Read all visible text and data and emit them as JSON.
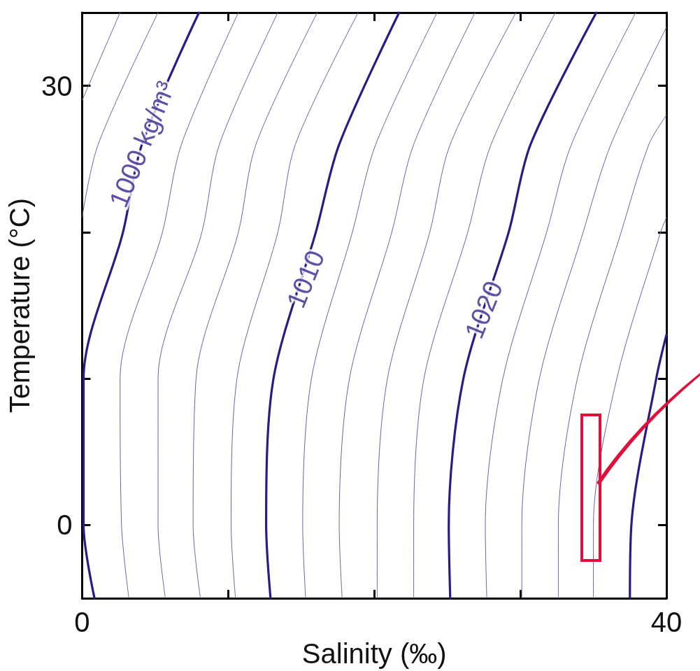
{
  "chart_data": {
    "type": "line",
    "xlabel": "Salinity (‰)",
    "ylabel": "Temperature (°C)",
    "xlim": [
      0,
      40
    ],
    "xticks": [
      0,
      {
        "value": 10,
        "label": null
      },
      {
        "value": 20,
        "label": null
      },
      {
        "value": 30,
        "label": null
      },
      40
    ],
    "ylim": [
      -5,
      35
    ],
    "yticks": [
      0,
      {
        "value": 10,
        "label": null
      },
      {
        "value": 20,
        "label": null
      },
      30
    ],
    "grid": false,
    "legend": false,
    "marker": "none",
    "line_style": "solid",
    "annotations": [
      {
        "text": "1000 kg/m³",
        "x": 4.1,
        "y": 26
      },
      {
        "text": "1010",
        "x": 15.3,
        "y": 16.8
      },
      {
        "text": "1020",
        "x": 27.5,
        "y": 14.7
      }
    ],
    "series": [
      {
        "color": "#6a62b0",
        "x": [
          0,
          2.6
        ],
        "values": [
          29,
          35
        ]
      },
      {
        "color": "#6a62b0",
        "x": [
          0,
          1.1,
          5.2
        ],
        "values": [
          21,
          26,
          35
        ]
      },
      {
        "color": "#2e1a87",
        "x": [
          0.85,
          0.1,
          0.1,
          2.8,
          4.1,
          8.0
        ],
        "values": [
          -5,
          0,
          10,
          20,
          26,
          35
        ]
      },
      {
        "color": "#6a62b0",
        "x": [
          3.2,
          2.7,
          2.6,
          5.5,
          6.8,
          10.7
        ],
        "values": [
          -5,
          0,
          10,
          20,
          26,
          35
        ]
      },
      {
        "color": "#6a62b0",
        "x": [
          5.7,
          5.2,
          5.2,
          8.2,
          9.4,
          13.4
        ],
        "values": [
          -5,
          0,
          10,
          20,
          26,
          35
        ]
      },
      {
        "color": "#6a62b0",
        "x": [
          8.1,
          7.6,
          7.8,
          10.7,
          11.9,
          16.1
        ],
        "values": [
          -5,
          0,
          10,
          20,
          26,
          35
        ]
      },
      {
        "color": "#6a62b0",
        "x": [
          10.5,
          10.2,
          10.6,
          13.4,
          14.6,
          18.9
        ],
        "values": [
          -5,
          0,
          10,
          20,
          26,
          35
        ]
      },
      {
        "color": "#2e1a87",
        "x": [
          12.9,
          12.6,
          13.1,
          16.0,
          17.6,
          21.7
        ],
        "values": [
          -5,
          0,
          10,
          20,
          26,
          35
        ]
      },
      {
        "color": "#6a62b0",
        "x": [
          15.3,
          15.1,
          15.7,
          18.5,
          20.1,
          24.3
        ],
        "values": [
          -5,
          0,
          10,
          20,
          26,
          35
        ]
      },
      {
        "color": "#6a62b0",
        "x": [
          17.8,
          17.6,
          18.3,
          21.2,
          22.7,
          26.9
        ],
        "values": [
          -5,
          0,
          10,
          20,
          26,
          35
        ]
      },
      {
        "color": "#6a62b0",
        "x": [
          20.2,
          20.2,
          20.9,
          23.8,
          25.2,
          29.7
        ],
        "values": [
          -5,
          0,
          10,
          20,
          26,
          35
        ]
      },
      {
        "color": "#6a62b0",
        "x": [
          22.7,
          22.7,
          23.4,
          26.4,
          28.0,
          32.4
        ],
        "values": [
          -5,
          0,
          10,
          20,
          26,
          35
        ]
      },
      {
        "color": "#2e1a87",
        "x": [
          25.2,
          25.1,
          26.1,
          29.2,
          30.7,
          35.2
        ],
        "values": [
          -5,
          0,
          10,
          20,
          26,
          35
        ]
      },
      {
        "color": "#6a62b0",
        "x": [
          27.7,
          27.6,
          28.8,
          31.8,
          33.5,
          37.9
        ],
        "values": [
          -5,
          0,
          10,
          20,
          26,
          35
        ]
      },
      {
        "color": "#6a62b0",
        "x": [
          30.1,
          30.1,
          31.3,
          34.3,
          36.2,
          40
        ],
        "values": [
          -5,
          0,
          10,
          20,
          26,
          34
        ]
      },
      {
        "color": "#6a62b0",
        "x": [
          32.6,
          32.6,
          33.9,
          36.9,
          38.8,
          40
        ],
        "values": [
          -5,
          0,
          10,
          20,
          26,
          28
        ]
      },
      {
        "color": "#6a62b0",
        "x": [
          35.0,
          35.0,
          36.6,
          39.6,
          40
        ],
        "values": [
          -5,
          0,
          10,
          20,
          21
        ]
      },
      {
        "color": "#2e1a87",
        "x": [
          37.5,
          37.6,
          39.3,
          40
        ],
        "values": [
          -5,
          0,
          10,
          13
        ]
      }
    ]
  }
}
